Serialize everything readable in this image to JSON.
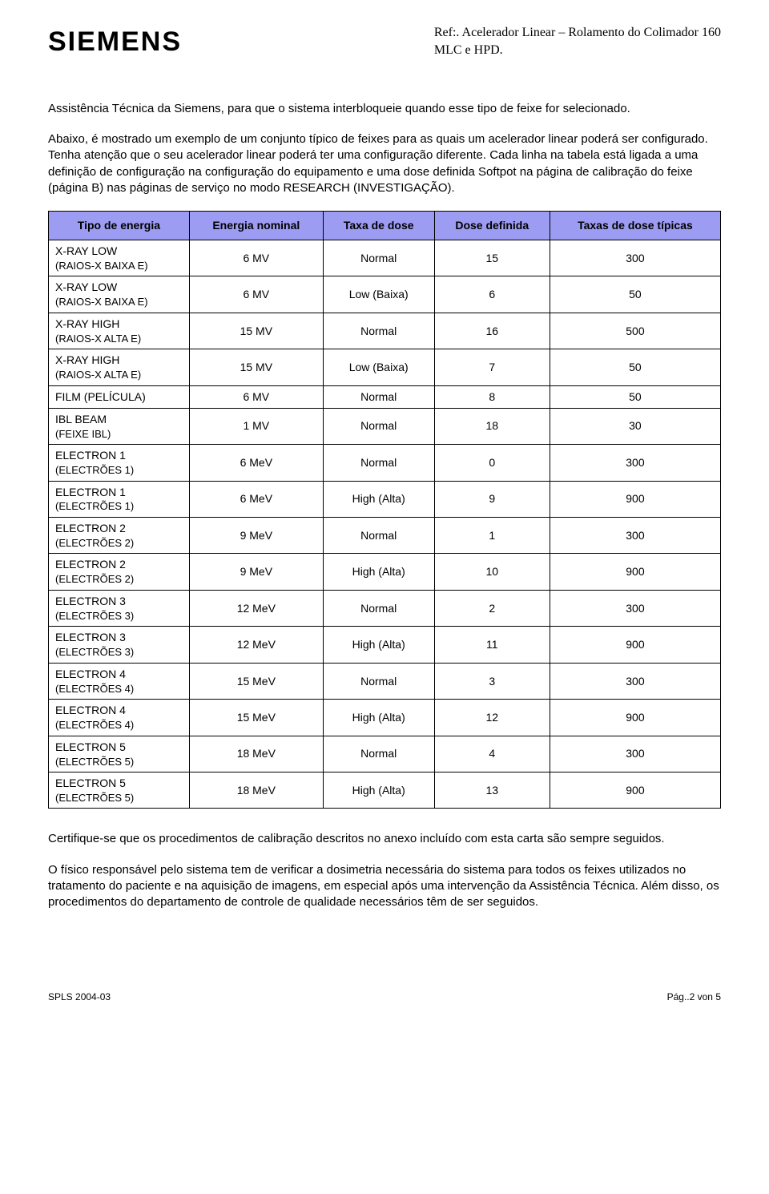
{
  "header": {
    "logo_text": "SIEMENS",
    "ref_line1": "Ref:. Acelerador Linear – Rolamento do Colimador 160",
    "ref_line2": "MLC e HPD."
  },
  "paragraphs": {
    "p1": "Assistência Técnica da Siemens, para que o sistema interbloqueie quando esse tipo de feixe for selecionado.",
    "p2": "Abaixo, é mostrado um exemplo de um conjunto típico de feixes para as quais um acelerador linear poderá ser configurado. Tenha atenção que o seu acelerador linear poderá ter uma configuração diferente. Cada linha na tabela está ligada a uma definição de configuração na configuração do equipamento e uma dose definida Softpot na página de calibração do feixe (página B) nas páginas de serviço no modo RESEARCH (INVESTIGAÇÃO).",
    "p3": "Certifique-se que os procedimentos de calibração descritos no anexo incluído com esta carta são sempre seguidos.",
    "p4": "O físico responsável pelo sistema tem de verificar a dosimetria necessária do sistema para todos os feixes utilizados no tratamento do paciente e na aquisição de imagens, em especial após uma intervenção da Assistência Técnica. Além disso, os procedimentos do departamento de controle de qualidade necessários têm de ser seguidos."
  },
  "table": {
    "type": "table",
    "header_bg": "#9c9cf2",
    "border_color": "#000000",
    "font_size": 14,
    "columns": [
      "Tipo de energia",
      "Energia nominal",
      "Taxa de dose",
      "Dose definida",
      "Taxas de dose típicas"
    ],
    "col_align": [
      "left",
      "center",
      "center",
      "center",
      "center"
    ],
    "rows": [
      {
        "c1a": "X-RAY LOW",
        "c1b": "(RAIOS-X BAIXA E)",
        "c2": "6 MV",
        "c3": "Normal",
        "c4": "15",
        "c5": "300"
      },
      {
        "c1a": "X-RAY LOW",
        "c1b": "(RAIOS-X BAIXA E)",
        "c2": "6 MV",
        "c3": "Low (Baixa)",
        "c4": "6",
        "c5": "50"
      },
      {
        "c1a": "X-RAY HIGH",
        "c1b": "(RAIOS-X ALTA E)",
        "c2": "15 MV",
        "c3": "Normal",
        "c4": "16",
        "c5": "500"
      },
      {
        "c1a": "X-RAY HIGH",
        "c1b": "(RAIOS-X ALTA E)",
        "c2": "15 MV",
        "c3": "Low (Baixa)",
        "c4": "7",
        "c5": "50"
      },
      {
        "c1a": "FILM (PELÍCULA)",
        "c1b": "",
        "c2": "6 MV",
        "c3": "Normal",
        "c4": "8",
        "c5": "50"
      },
      {
        "c1a": "IBL BEAM",
        "c1b": "(FEIXE IBL)",
        "c2": "1 MV",
        "c3": "Normal",
        "c4": "18",
        "c5": "30"
      },
      {
        "c1a": "ELECTRON 1",
        "c1b": "(ELECTRÕES 1)",
        "c2": "6 MeV",
        "c3": "Normal",
        "c4": "0",
        "c5": "300"
      },
      {
        "c1a": "ELECTRON 1",
        "c1b": "(ELECTRÕES 1)",
        "c2": "6 MeV",
        "c3": "High (Alta)",
        "c4": "9",
        "c5": "900"
      },
      {
        "c1a": "ELECTRON 2",
        "c1b": "(ELECTRÕES 2)",
        "c2": "9 MeV",
        "c3": "Normal",
        "c4": "1",
        "c5": "300"
      },
      {
        "c1a": "ELECTRON 2",
        "c1b": "(ELECTRÕES 2)",
        "c2": "9 MeV",
        "c3": "High (Alta)",
        "c4": "10",
        "c5": "900"
      },
      {
        "c1a": "ELECTRON 3",
        "c1b": "(ELECTRÕES 3)",
        "c2": "12 MeV",
        "c3": "Normal",
        "c4": "2",
        "c5": "300"
      },
      {
        "c1a": "ELECTRON 3",
        "c1b": "(ELECTRÕES 3)",
        "c2": "12 MeV",
        "c3": "High (Alta)",
        "c4": "11",
        "c5": "900"
      },
      {
        "c1a": "ELECTRON 4",
        "c1b": "(ELECTRÕES 4)",
        "c2": "15 MeV",
        "c3": "Normal",
        "c4": "3",
        "c5": "300"
      },
      {
        "c1a": "ELECTRON 4",
        "c1b": "(ELECTRÕES 4)",
        "c2": "15 MeV",
        "c3": "High (Alta)",
        "c4": "12",
        "c5": "900"
      },
      {
        "c1a": "ELECTRON 5",
        "c1b": "(ELECTRÕES 5)",
        "c2": "18 MeV",
        "c3": "Normal",
        "c4": "4",
        "c5": "300"
      },
      {
        "c1a": "ELECTRON 5",
        "c1b": "(ELECTRÕES 5)",
        "c2": "18 MeV",
        "c3": "High (Alta)",
        "c4": "13",
        "c5": "900"
      }
    ]
  },
  "footer": {
    "left": "SPLS 2004-03",
    "right": "Pág..2 von 5"
  }
}
